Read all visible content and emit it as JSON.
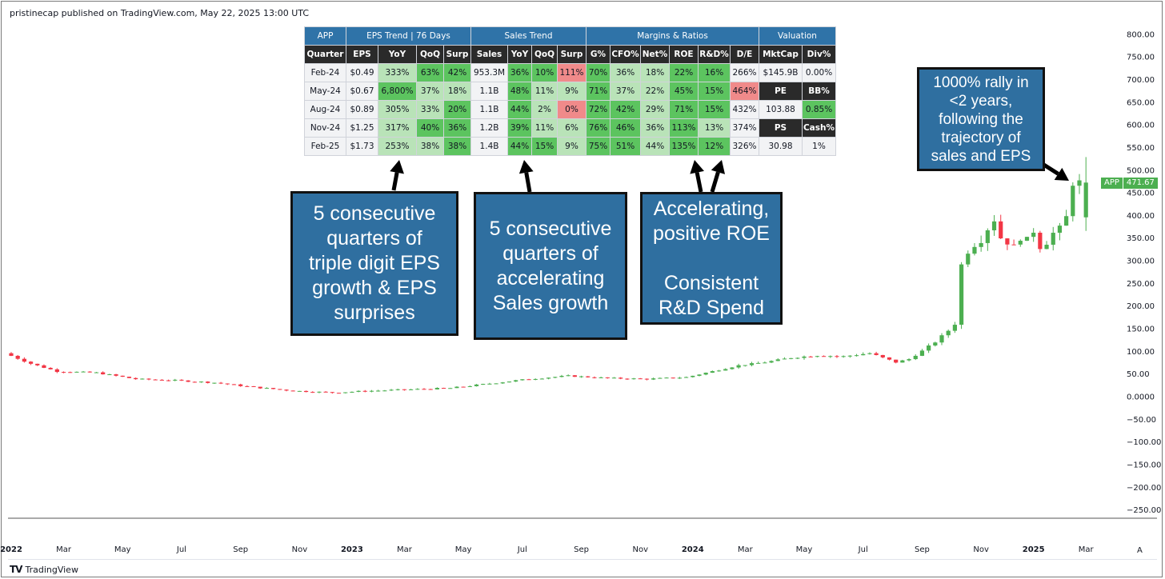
{
  "header": {
    "published": "pristinecap published on TradingView.com, May 22, 2025 13:00 UTC"
  },
  "footer": {
    "brand": "TradingView",
    "autoscale": "A"
  },
  "price_tag": {
    "symbol": "APP",
    "price": "471.67",
    "color": "#4caf50"
  },
  "table": {
    "groups": [
      {
        "label": "APP",
        "span": 1
      },
      {
        "label": "EPS Trend | 76 Days",
        "span": 4
      },
      {
        "label": "Sales Trend",
        "span": 4
      },
      {
        "label": "Margins & Ratios",
        "span": 6
      },
      {
        "label": "Valuation",
        "span": 2
      }
    ],
    "headers": [
      "Quarter",
      "EPS",
      "YoY",
      "QoQ",
      "Surp",
      "Sales",
      "YoY",
      "QoQ",
      "Surp",
      "G%",
      "CFO%",
      "Net%",
      "ROE",
      "R&D%",
      "D/E",
      "MktCap",
      "Div%"
    ],
    "rows": [
      {
        "cells": [
          "Feb-24",
          "$0.49",
          "333%",
          "63%",
          "42%",
          "953.3M",
          "36%",
          "10%",
          "111%",
          "70%",
          "36%",
          "18%",
          "22%",
          "16%",
          "266%",
          "$145.9B",
          "0.00%"
        ],
        "styles": [
          "q",
          "wh",
          "g2",
          "g1",
          "g1",
          "wh",
          "g1",
          "g1",
          "rd",
          "g1",
          "g2",
          "g2",
          "g1",
          "g1",
          "wh",
          "wh",
          "wh"
        ]
      },
      {
        "cells": [
          "May-24",
          "$0.67",
          "6,800%",
          "37%",
          "18%",
          "1.1B",
          "48%",
          "11%",
          "9%",
          "71%",
          "37%",
          "22%",
          "45%",
          "15%",
          "464%",
          "PE",
          "BB%"
        ],
        "styles": [
          "q",
          "wh",
          "g1",
          "g2",
          "g2",
          "wh",
          "g1",
          "g2",
          "g2",
          "g1",
          "g2",
          "g2",
          "g1",
          "g1",
          "rd",
          "dk",
          "dk"
        ]
      },
      {
        "cells": [
          "Aug-24",
          "$0.89",
          "305%",
          "33%",
          "20%",
          "1.1B",
          "44%",
          "2%",
          "0%",
          "72%",
          "42%",
          "29%",
          "71%",
          "15%",
          "432%",
          "103.88",
          "0.85%"
        ],
        "styles": [
          "q",
          "wh",
          "g2",
          "g2",
          "g1",
          "wh",
          "g1",
          "g2",
          "rd",
          "g1",
          "g1",
          "g2",
          "g1",
          "g1",
          "wh",
          "wh",
          "g1"
        ]
      },
      {
        "cells": [
          "Nov-24",
          "$1.25",
          "317%",
          "40%",
          "36%",
          "1.2B",
          "39%",
          "11%",
          "6%",
          "76%",
          "46%",
          "36%",
          "113%",
          "13%",
          "374%",
          "PS",
          "Cash%"
        ],
        "styles": [
          "q",
          "wh",
          "g2",
          "g1",
          "g1",
          "wh",
          "g1",
          "g2",
          "g2",
          "g1",
          "g1",
          "g2",
          "g1",
          "g2",
          "wh",
          "dk",
          "dk"
        ]
      },
      {
        "cells": [
          "Feb-25",
          "$1.73",
          "253%",
          "38%",
          "38%",
          "1.4B",
          "44%",
          "15%",
          "9%",
          "75%",
          "51%",
          "44%",
          "135%",
          "12%",
          "326%",
          "30.98",
          "1%"
        ],
        "styles": [
          "q",
          "wh",
          "g2",
          "g2",
          "g1",
          "wh",
          "g1",
          "g1",
          "g2",
          "g1",
          "g1",
          "g2",
          "g1",
          "g1",
          "wh",
          "wh",
          "wh"
        ]
      }
    ]
  },
  "callouts": {
    "eps": "5 consecutive\nquarters of\ntriple digit EPS\ngrowth & EPS\nsurprises",
    "sales": "5 consecutive\nquarters of\naccelerating\nSales growth",
    "roe": "Accelerating,\npositive ROE\n\nConsistent\nR&D Spend",
    "rally": "1000% rally in\n<2 years,\nfollowing the\ntrajectory of\nsales and EPS"
  },
  "colors": {
    "up": "#4caf50",
    "down": "#f23645",
    "callout": "#2f6fa0",
    "table_header": "#2f73a8"
  },
  "chart_data": {
    "type": "candlestick",
    "symbol": "APP",
    "interval": "weekly",
    "ylim": [
      -250,
      800
    ],
    "y_ticks": [
      800,
      750,
      700,
      650,
      600,
      550,
      500,
      450,
      400,
      350,
      300,
      250,
      200,
      150,
      100,
      50,
      0,
      -50,
      -100,
      -150,
      -200,
      -250
    ],
    "y_tick_labels": [
      "800.00",
      "750.00",
      "700.00",
      "650.00",
      "600.00",
      "550.00",
      "500.00",
      "450.00",
      "400.00",
      "350.00",
      "300.00",
      "250.00",
      "200.00",
      "150.00",
      "100.00",
      "50.00",
      "0.0000",
      "−50.00",
      "−100.00",
      "−150.00",
      "−200.00",
      "−250.00"
    ],
    "x_labels": [
      "2022",
      "Mar",
      "May",
      "Jul",
      "Sep",
      "Nov",
      "2023",
      "Mar",
      "May",
      "Jul",
      "Sep",
      "Nov",
      "2024",
      "Mar",
      "May",
      "Jul",
      "Sep",
      "Nov",
      "2025",
      "Mar"
    ],
    "x_label_index": [
      0,
      8,
      17,
      26,
      35,
      44,
      52,
      60,
      69,
      78,
      87,
      96,
      104,
      112,
      121,
      130,
      139,
      148,
      156,
      164
    ],
    "last_close": 471.67,
    "price_path": [
      [
        0,
        95
      ],
      [
        4,
        72
      ],
      [
        8,
        55
      ],
      [
        14,
        52
      ],
      [
        20,
        38
      ],
      [
        26,
        35
      ],
      [
        32,
        30
      ],
      [
        38,
        20
      ],
      [
        44,
        12
      ],
      [
        50,
        8
      ],
      [
        56,
        12
      ],
      [
        62,
        15
      ],
      [
        68,
        18
      ],
      [
        74,
        28
      ],
      [
        80,
        38
      ],
      [
        86,
        45
      ],
      [
        92,
        40
      ],
      [
        98,
        38
      ],
      [
        104,
        42
      ],
      [
        108,
        55
      ],
      [
        112,
        68
      ],
      [
        116,
        75
      ],
      [
        120,
        85
      ],
      [
        124,
        90
      ],
      [
        128,
        88
      ],
      [
        132,
        95
      ],
      [
        134,
        85
      ],
      [
        136,
        75
      ],
      [
        138,
        82
      ],
      [
        140,
        100
      ],
      [
        142,
        120
      ],
      [
        144,
        145
      ],
      [
        145,
        160
      ],
      [
        146,
        290
      ],
      [
        147,
        320
      ],
      [
        148,
        335
      ],
      [
        149,
        345
      ],
      [
        150,
        370
      ],
      [
        151,
        390
      ],
      [
        152,
        350
      ],
      [
        153,
        340
      ],
      [
        154,
        330
      ],
      [
        155,
        350
      ],
      [
        156,
        345
      ],
      [
        157,
        365
      ],
      [
        158,
        330
      ],
      [
        159,
        340
      ],
      [
        160,
        360
      ],
      [
        161,
        370
      ],
      [
        162,
        395
      ],
      [
        163,
        471.67
      ]
    ]
  }
}
